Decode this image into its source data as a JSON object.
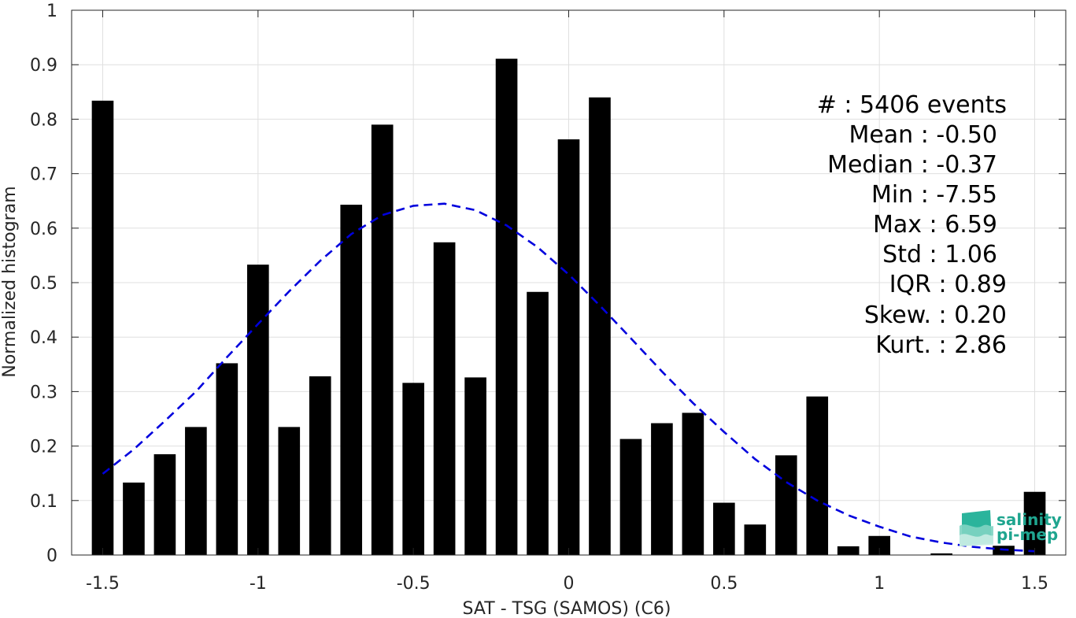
{
  "chart_data": {
    "type": "bar",
    "xlabel": "SAT - TSG (SAMOS) (C6)",
    "ylabel": "Normalized histogram",
    "xlim": [
      -1.6,
      1.6
    ],
    "ylim": [
      0,
      1
    ],
    "grid": true,
    "xticks": [
      -1.5,
      -1,
      -0.5,
      0,
      0.5,
      1,
      1.5
    ],
    "xtick_labels": [
      "-1.5",
      "-1",
      "-0.5",
      "0",
      "0.5",
      "1",
      "1.5"
    ],
    "yticks": [
      0,
      0.1,
      0.2,
      0.3,
      0.4,
      0.5,
      0.6,
      0.7,
      0.8,
      0.9,
      1
    ],
    "ytick_labels": [
      "0",
      "0.1",
      "0.2",
      "0.3",
      "0.4",
      "0.5",
      "0.6",
      "0.7",
      "0.8",
      "0.9",
      "1"
    ],
    "bar_width": 0.07,
    "x": [
      -1.5,
      -1.4,
      -1.3,
      -1.2,
      -1.1,
      -1.0,
      -0.9,
      -0.8,
      -0.7,
      -0.6,
      -0.5,
      -0.4,
      -0.3,
      -0.2,
      -0.1,
      0.0,
      0.1,
      0.2,
      0.3,
      0.4,
      0.5,
      0.6,
      0.7,
      0.8,
      0.9,
      1.0,
      1.1,
      1.2,
      1.3,
      1.4,
      1.5
    ],
    "values": [
      0.834,
      0.133,
      0.185,
      0.235,
      0.352,
      0.533,
      0.235,
      0.328,
      0.643,
      0.79,
      0.316,
      0.574,
      0.326,
      0.911,
      0.483,
      0.763,
      0.84,
      0.213,
      0.242,
      0.261,
      0.096,
      0.056,
      0.183,
      0.291,
      0.016,
      0.035,
      0.0,
      0.003,
      0.0,
      0.017,
      0.116
    ],
    "bar_color": "#000000",
    "fit_curve": {
      "style": "dashed",
      "color": "#0000dd",
      "x": [
        -1.5,
        -1.4,
        -1.3,
        -1.2,
        -1.1,
        -1.0,
        -0.9,
        -0.8,
        -0.7,
        -0.6,
        -0.5,
        -0.4,
        -0.3,
        -0.2,
        -0.1,
        0.0,
        0.1,
        0.2,
        0.3,
        0.4,
        0.5,
        0.6,
        0.7,
        0.8,
        0.9,
        1.0,
        1.1,
        1.2,
        1.3,
        1.4,
        1.5
      ],
      "y": [
        0.149,
        0.194,
        0.246,
        0.3,
        0.363,
        0.424,
        0.484,
        0.54,
        0.589,
        0.624,
        0.641,
        0.645,
        0.633,
        0.605,
        0.565,
        0.515,
        0.458,
        0.398,
        0.337,
        0.279,
        0.226,
        0.176,
        0.134,
        0.1,
        0.073,
        0.052,
        0.034,
        0.023,
        0.015,
        0.01,
        0.007
      ]
    }
  },
  "stats": {
    "lines": [
      "#  : 5406 events",
      "Mean : -0.50",
      "Median : -0.37",
      "Min : -7.55",
      "Max : 6.59",
      "Std : 1.06",
      "IQR : 0.89",
      "Skew. : 0.20",
      "Kurt. : 2.86"
    ]
  },
  "logo": {
    "line1": "salinity",
    "line2": "pi-mep",
    "color": "#1fa58f"
  }
}
